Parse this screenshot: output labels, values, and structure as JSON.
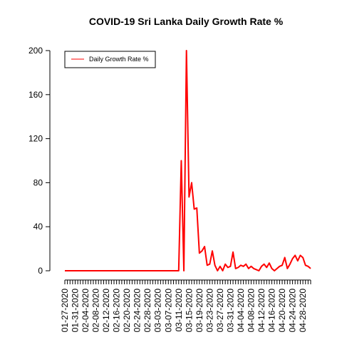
{
  "chart_data": {
    "type": "line",
    "title": "COVID-19 Sri Lanka Daily Growth Rate %",
    "xlabel": "",
    "ylabel": "",
    "ylim": [
      0,
      200
    ],
    "y_ticks": [
      0,
      40,
      80,
      120,
      160,
      200
    ],
    "x_tick_labels": [
      "01-27-2020",
      "01-31-2020",
      "02-04-2020",
      "02-08-2020",
      "02-12-2020",
      "02-16-2020",
      "02-20-2020",
      "02-24-2020",
      "02-28-2020",
      "03-03-2020",
      "03-07-2020",
      "03-11-2020",
      "03-15-2020",
      "03-19-2020",
      "03-23-2020",
      "03-27-2020",
      "03-31-2020",
      "04-04-2020",
      "04-08-2020",
      "04-12-2020",
      "04-16-2020",
      "04-20-2020",
      "04-24-2020",
      "04-28-2020"
    ],
    "legend": {
      "position": "top-left",
      "entries": [
        "Daily Growth Rate %"
      ]
    },
    "colors": {
      "series": "#ff0000"
    },
    "grid": false,
    "series": [
      {
        "name": "Daily Growth Rate %",
        "x_start": "01-27-2020",
        "x_end": "04-30-2020",
        "values": [
          0,
          0,
          0,
          0,
          0,
          0,
          0,
          0,
          0,
          0,
          0,
          0,
          0,
          0,
          0,
          0,
          0,
          0,
          0,
          0,
          0,
          0,
          0,
          0,
          0,
          0,
          0,
          0,
          0,
          0,
          0,
          0,
          0,
          0,
          0,
          0,
          0,
          0,
          0,
          0,
          0,
          0,
          0,
          0,
          0,
          100,
          0,
          200,
          67,
          80,
          56,
          57,
          16,
          18,
          22,
          5,
          6,
          18,
          5,
          0,
          4,
          0,
          6,
          3,
          4,
          17,
          2,
          3,
          5,
          4,
          6,
          2,
          4,
          2,
          1,
          0,
          4,
          6,
          3,
          7,
          2,
          0,
          2,
          4,
          5,
          12,
          2,
          6,
          11,
          14,
          9,
          14,
          12,
          5,
          4,
          2
        ]
      }
    ]
  }
}
